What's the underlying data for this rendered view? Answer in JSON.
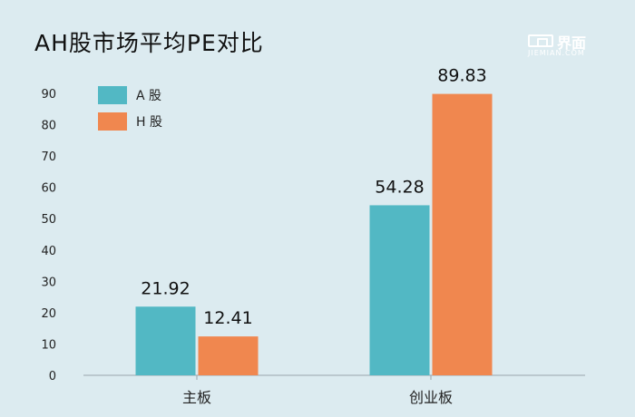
{
  "title": "AH股市场平均PE对比",
  "logo": {
    "text_cn": "界面",
    "text_en": "JIEMIAN.COM"
  },
  "chart_data": {
    "type": "bar",
    "title": "AH股市场平均PE对比",
    "categories": [
      "主板",
      "创业板"
    ],
    "series": [
      {
        "name": "A 股",
        "color": "#52b8c4",
        "values": [
          21.92,
          54.28
        ]
      },
      {
        "name": "H 股",
        "color": "#f0874f",
        "values": [
          12.41,
          89.83
        ]
      }
    ],
    "data_labels": [
      [
        "21.92",
        "54.28"
      ],
      [
        "12.41",
        "89.83"
      ]
    ],
    "yticks": [
      0,
      10,
      20,
      30,
      40,
      50,
      60,
      70,
      80,
      90
    ],
    "ylim": [
      0,
      90
    ],
    "grid": false,
    "legend": "top-left"
  }
}
